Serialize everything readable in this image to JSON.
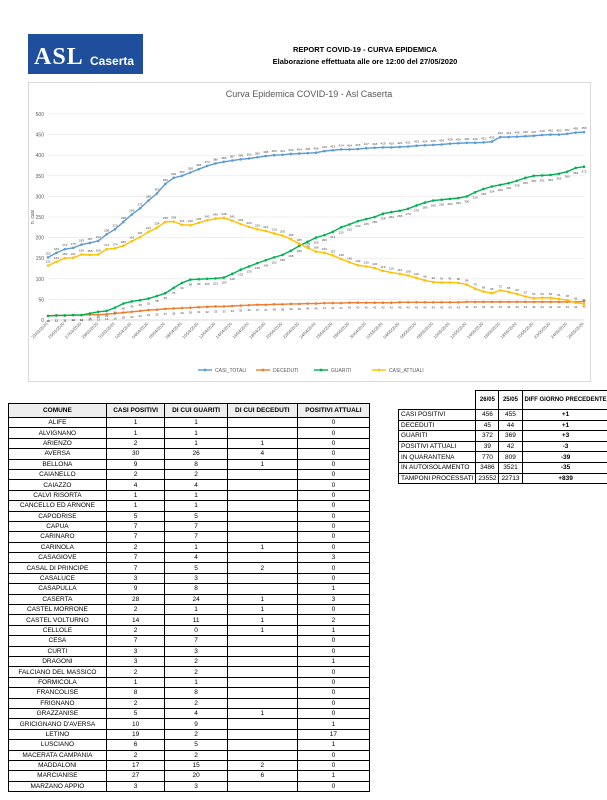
{
  "header": {
    "logo": {
      "top": "ASL",
      "bottom": "Caserta"
    },
    "title": "REPORT COVID-19 - CURVA EPIDEMICA",
    "subtitle": "Elaborazione effettuata alle ore 12:00 del 27/05/2020"
  },
  "chart_data": {
    "type": "line",
    "title": "Curva Epidemica COVID-19 - Asl Caserta",
    "y_label": "n. casi",
    "categories": [
      "23/03/2020",
      null,
      "25/03/2020",
      null,
      "27/03/2020",
      null,
      "29/03/2020",
      null,
      "31/03/2020",
      null,
      "02/04/2020",
      null,
      "04/04/2020",
      null,
      "06/04/2020",
      null,
      "08/04/2020",
      null,
      "10/04/2020",
      null,
      "12/04/2020",
      null,
      "14/04/2020",
      null,
      "16/04/2020",
      null,
      "18/04/2020",
      null,
      "20/04/2020",
      null,
      "22/04/2020",
      null,
      "24/04/2020",
      null,
      "26/04/2020",
      null,
      "28/04/2020",
      null,
      "30/04/2020",
      null,
      "02/05/2020",
      null,
      "04/05/2020",
      null,
      "06/05/2020",
      null,
      "08/05/2020",
      null,
      "10/05/2020",
      null,
      "12/05/2020",
      null,
      "14/05/2020",
      null,
      "16/05/2020",
      null,
      "18/05/2020",
      null,
      "20/05/2020",
      null,
      "22/05/2020",
      null,
      "24/05/2020",
      null,
      "26/05/2020"
    ],
    "series": [
      {
        "name": "CASI_TOTALI",
        "color": "#5b9bd5",
        "values": [
          152,
          163,
          172,
          175,
          183,
          187,
          192,
          208,
          220,
          238,
          256,
          271,
          290,
          307,
          330,
          345,
          350,
          358,
          366,
          374,
          380,
          384,
          387,
          390,
          392,
          395,
          398,
          400,
          401,
          403,
          404,
          405,
          406,
          410,
          412,
          414,
          414,
          415,
          417,
          418,
          419,
          419,
          420,
          421,
          423,
          424,
          425,
          426,
          428,
          429,
          430,
          430,
          431,
          433,
          444,
          444,
          445,
          446,
          447,
          449,
          450,
          450,
          452,
          455,
          456
        ]
      },
      {
        "name": "DECEDUTI",
        "color": "#ed7d31",
        "values": [
          10,
          11,
          11,
          12,
          12,
          13,
          13,
          14,
          16,
          18,
          20,
          22,
          24,
          25,
          27,
          28,
          29,
          30,
          31,
          32,
          33,
          33,
          34,
          35,
          36,
          37,
          37,
          38,
          38,
          39,
          39,
          40,
          40,
          41,
          41,
          41,
          42,
          42,
          42,
          42,
          42,
          42,
          43,
          43,
          43,
          43,
          43,
          43,
          43,
          43,
          44,
          44,
          44,
          44,
          44,
          44,
          44,
          44,
          44,
          44,
          44,
          44,
          44,
          44,
          45
        ]
      },
      {
        "name": "GUARITI",
        "color": "#00b050",
        "values": [
          10,
          11,
          11,
          12,
          12,
          16,
          20,
          22,
          30,
          40,
          45,
          48,
          52,
          58,
          65,
          78,
          90,
          98,
          99,
          100,
          101,
          103,
          112,
          122,
          130,
          138,
          145,
          152,
          158,
          168,
          180,
          190,
          200,
          206,
          214,
          225,
          232,
          240,
          245,
          250,
          258,
          262,
          265,
          270,
          278,
          285,
          290,
          292,
          294,
          296,
          300,
          310,
          318,
          324,
          328,
          332,
          338,
          345,
          350,
          351,
          352,
          355,
          360,
          369,
          372
        ]
      },
      {
        "name": "CASI_ATTUALI",
        "color": "#ffc000",
        "values": [
          132,
          141,
          150,
          151,
          159,
          158,
          159,
          172,
          174,
          180,
          191,
          201,
          214,
          224,
          238,
          239,
          231,
          230,
          236,
          242,
          246,
          248,
          241,
          233,
          226,
          220,
          216,
          210,
          205,
          196,
          185,
          175,
          166,
          163,
          157,
          148,
          140,
          133,
          130,
          126,
          119,
          115,
          112,
          108,
          102,
          96,
          92,
          91,
          91,
          90,
          86,
          76,
          69,
          65,
          72,
          68,
          63,
          57,
          53,
          54,
          54,
          51,
          48,
          42,
          39
        ]
      }
    ],
    "ylim": [
      0,
      500
    ],
    "yticks": [
      0,
      50,
      100,
      150,
      200,
      250,
      300,
      350,
      400,
      450,
      500
    ],
    "grid": true,
    "legend": "bottom",
    "data_labels": true
  },
  "summary": {
    "columns": [
      "26/05",
      "25/05",
      "DIFF GIORNO PRECEDENTE"
    ],
    "rows": [
      [
        "CASI POSITIVI",
        456,
        455,
        "+1"
      ],
      [
        "DECEDUTI",
        45,
        44,
        "+1"
      ],
      [
        "GUARITI",
        372,
        369,
        "+3"
      ],
      [
        "POSITIVI ATTUALI",
        39,
        42,
        "-3"
      ],
      [
        "IN QUARANTENA",
        770,
        809,
        "-39"
      ],
      [
        "IN AUTOISOLAMENTO",
        3486,
        3521,
        "-35"
      ],
      [
        "TAMPONI PROCESSATI",
        23552,
        22713,
        "+839"
      ]
    ]
  },
  "table": {
    "columns": [
      "COMUNE",
      "CASI POSITIVI",
      "DI CUI GUARITI",
      "DI CUI DECEDUTI",
      "POSITIVI ATTUALI"
    ],
    "rows": [
      [
        "ALIFE",
        1,
        1,
        null,
        0
      ],
      [
        "ALVIGNANO",
        1,
        1,
        null,
        0
      ],
      [
        "ARIENZO",
        2,
        1,
        1,
        0
      ],
      [
        "AVERSA",
        30,
        26,
        4,
        0
      ],
      [
        "BELLONA",
        9,
        8,
        1,
        0
      ],
      [
        "CAIANELLO",
        2,
        2,
        null,
        0
      ],
      [
        "CAIAZZO",
        4,
        4,
        null,
        0
      ],
      [
        "CALVI RISORTA",
        1,
        1,
        null,
        0
      ],
      [
        "CANCELLO ED ARNONE",
        1,
        1,
        null,
        0
      ],
      [
        "CAPODRISE",
        5,
        5,
        null,
        0
      ],
      [
        "CAPUA",
        7,
        7,
        null,
        0
      ],
      [
        "CARINARO",
        7,
        7,
        null,
        0
      ],
      [
        "CARINOLA",
        2,
        1,
        1,
        0
      ],
      [
        "CASAGIOVE",
        7,
        4,
        null,
        3
      ],
      [
        "CASAL DI PRINCIPE",
        7,
        5,
        2,
        0
      ],
      [
        "CASALUCE",
        3,
        3,
        null,
        0
      ],
      [
        "CASAPULLA",
        9,
        8,
        null,
        1
      ],
      [
        "CASERTA",
        28,
        24,
        1,
        3
      ],
      [
        "CASTEL MORRONE",
        2,
        1,
        1,
        0
      ],
      [
        "CASTEL VOLTURNO",
        14,
        11,
        1,
        2
      ],
      [
        "CELLOLE",
        2,
        0,
        1,
        1
      ],
      [
        "CESA",
        7,
        7,
        null,
        0
      ],
      [
        "CURTI",
        3,
        3,
        null,
        0
      ],
      [
        "DRAGONI",
        3,
        2,
        null,
        1
      ],
      [
        "FALCIANO DEL MASSICO",
        2,
        2,
        null,
        0
      ],
      [
        "FORMICOLA",
        1,
        1,
        null,
        0
      ],
      [
        "FRANCOLISE",
        8,
        8,
        null,
        0
      ],
      [
        "FRIGNANO",
        2,
        2,
        null,
        0
      ],
      [
        "GRAZZANISE",
        5,
        4,
        1,
        0
      ],
      [
        "GRICIGNANO D'AVERSA",
        10,
        9,
        null,
        1
      ],
      [
        "LETINO",
        19,
        2,
        null,
        17
      ],
      [
        "LUSCIANO",
        6,
        5,
        null,
        1
      ],
      [
        "MACERATA CAMPANIA",
        2,
        2,
        null,
        0
      ],
      [
        "MADDALONI",
        17,
        15,
        2,
        0
      ],
      [
        "MARCIANISE",
        27,
        20,
        6,
        1
      ],
      [
        "MARZANO APPIO",
        3,
        3,
        null,
        0
      ]
    ]
  }
}
